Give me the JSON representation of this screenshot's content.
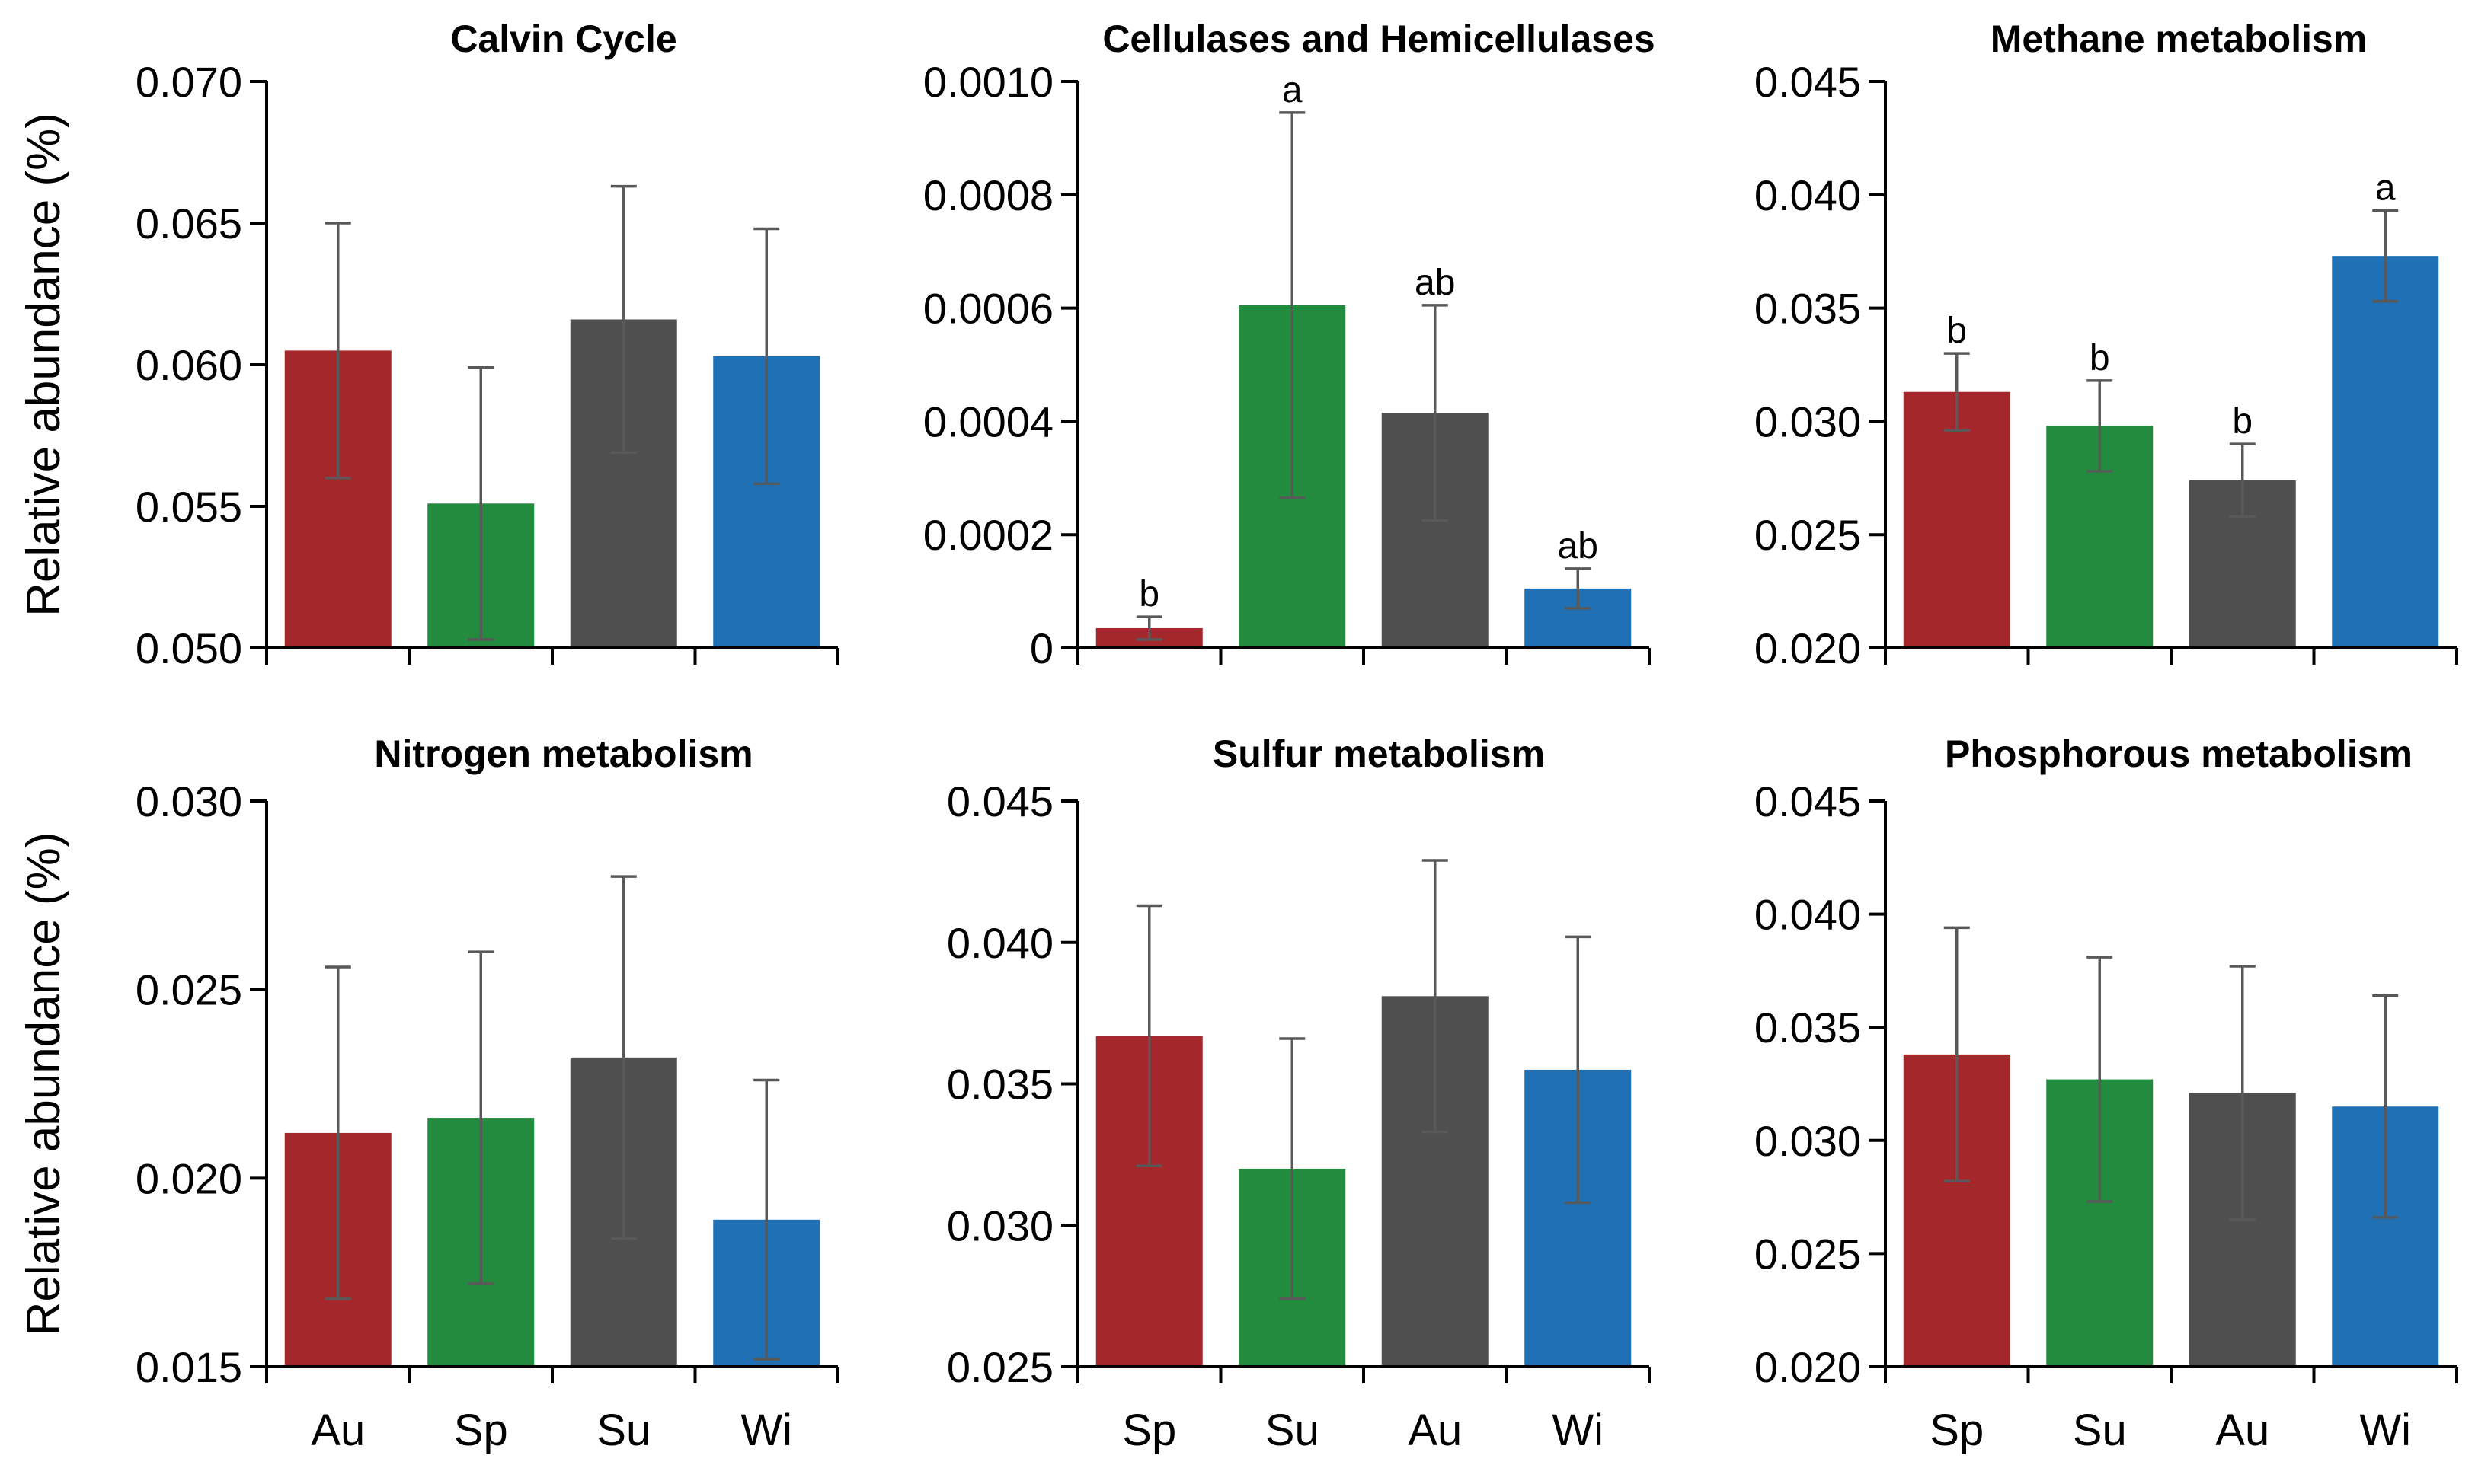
{
  "figure": {
    "ylabel": "Relative abundance (%)",
    "colors": {
      "bar1": "#A4282B",
      "bar2": "#238B3D",
      "bar3": "#4F4F4F",
      "bar4": "#1F70B5",
      "axis": "#000000",
      "errbar": "#595959"
    }
  },
  "chart_data": [
    {
      "type": "bar",
      "title": "Calvin Cycle",
      "ylabel": "Relative abundance (%)",
      "categories": [
        "Au",
        "Sp",
        "Su",
        "Wi"
      ],
      "show_categories": false,
      "values": [
        0.0605,
        0.0551,
        0.0616,
        0.0603
      ],
      "errors": [
        0.0045,
        0.0048,
        0.0047,
        0.0045
      ],
      "labels": [
        "",
        "",
        "",
        ""
      ],
      "ylim": [
        0.05,
        0.07
      ],
      "yticks": [
        "0.050",
        "0.055",
        "0.060",
        "0.065",
        "0.070"
      ],
      "col": 0,
      "row": 0
    },
    {
      "type": "bar",
      "title": "Cellulases and Hemicellulases",
      "ylabel": "",
      "categories": [
        "Sp",
        "Su",
        "Au",
        "Wi"
      ],
      "show_categories": false,
      "values": [
        3.5e-05,
        0.000605,
        0.000415,
        0.000105
      ],
      "errors": [
        2e-05,
        0.00034,
        0.00019,
        3.5e-05
      ],
      "labels": [
        "b",
        "a",
        "ab",
        "ab"
      ],
      "ylim": [
        0,
        0.001
      ],
      "yticks": [
        "0",
        "0.0002",
        "0.0004",
        "0.0006",
        "0.0008",
        "0.0010"
      ],
      "col": 1,
      "row": 0
    },
    {
      "type": "bar",
      "title": "Methane metabolism",
      "ylabel": "",
      "categories": [
        "Sp",
        "Su",
        "Au",
        "Wi"
      ],
      "show_categories": false,
      "values": [
        0.0313,
        0.0298,
        0.0274,
        0.0373
      ],
      "errors": [
        0.0017,
        0.002,
        0.0016,
        0.002
      ],
      "labels": [
        "b",
        "b",
        "b",
        "a"
      ],
      "ylim": [
        0.02,
        0.045
      ],
      "yticks": [
        "0.020",
        "0.025",
        "0.030",
        "0.035",
        "0.040",
        "0.045"
      ],
      "col": 2,
      "row": 0
    },
    {
      "type": "bar",
      "title": "Nitrogen metabolism",
      "ylabel": "Relative abundance (%)",
      "categories": [
        "Au",
        "Sp",
        "Su",
        "Wi"
      ],
      "show_categories": true,
      "values": [
        0.0212,
        0.0216,
        0.0232,
        0.0189
      ],
      "errors": [
        0.0044,
        0.0044,
        0.0048,
        0.0037
      ],
      "labels": [
        "",
        "",
        "",
        ""
      ],
      "ylim": [
        0.015,
        0.03
      ],
      "yticks": [
        "0.015",
        "0.020",
        "0.025",
        "0.030"
      ],
      "col": 0,
      "row": 1
    },
    {
      "type": "bar",
      "title": "Sulfur metabolism",
      "ylabel": "",
      "categories": [
        "Sp",
        "Su",
        "Au",
        "Wi"
      ],
      "show_categories": true,
      "values": [
        0.0367,
        0.032,
        0.0381,
        0.0355
      ],
      "errors": [
        0.0046,
        0.0046,
        0.0048,
        0.0047
      ],
      "labels": [
        "",
        "",
        "",
        ""
      ],
      "ylim": [
        0.025,
        0.045
      ],
      "yticks": [
        "0.025",
        "0.030",
        "0.035",
        "0.040",
        "0.045"
      ],
      "col": 1,
      "row": 1
    },
    {
      "type": "bar",
      "title": "Phosphorous metabolism",
      "ylabel": "",
      "categories": [
        "Sp",
        "Su",
        "Au",
        "Wi"
      ],
      "show_categories": true,
      "values": [
        0.0338,
        0.0327,
        0.0321,
        0.0315
      ],
      "errors": [
        0.0056,
        0.0054,
        0.0056,
        0.0049
      ],
      "labels": [
        "",
        "",
        "",
        ""
      ],
      "ylim": [
        0.02,
        0.045
      ],
      "yticks": [
        "0.020",
        "0.025",
        "0.030",
        "0.035",
        "0.040",
        "0.045"
      ],
      "col": 2,
      "row": 1
    }
  ]
}
